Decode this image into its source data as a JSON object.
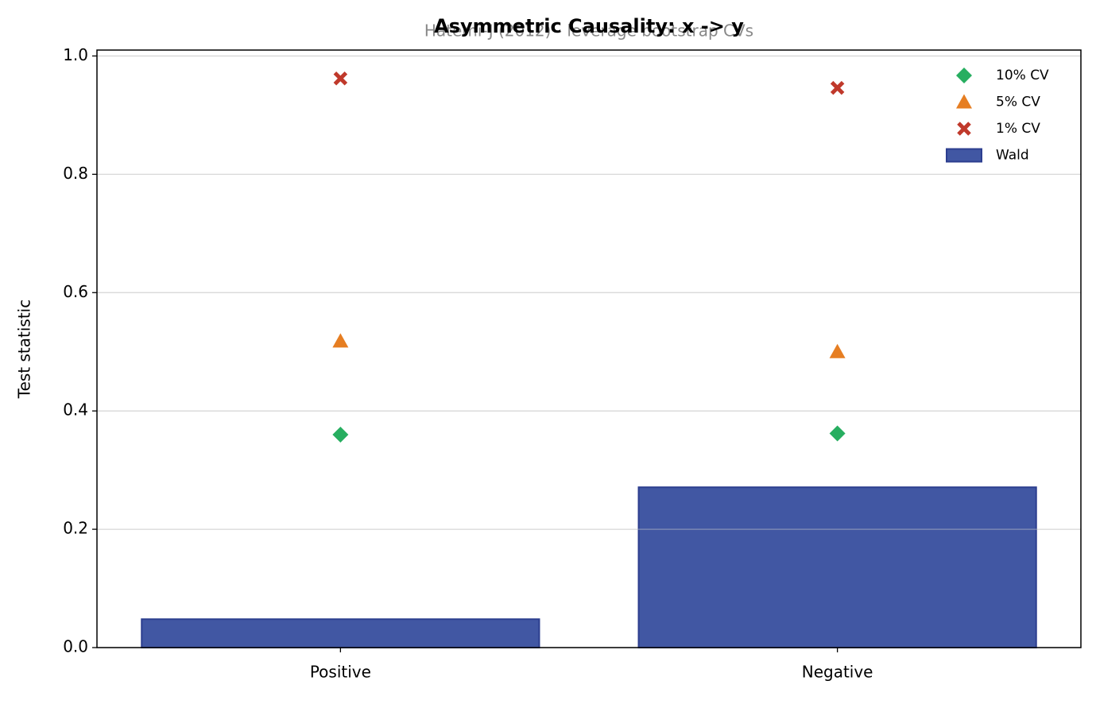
{
  "chart_data": {
    "type": "bar",
    "title": "Asymmetric Causality: x -> y",
    "subtitle": "Hatemi-J (2012) - leverage bootstrap CVs",
    "y_label": "Test statistic",
    "categories": [
      "Positive",
      "Negative"
    ],
    "series": [
      {
        "name": "Wald",
        "kind": "bar",
        "color": "#4157a3",
        "values": [
          0.048,
          0.271
        ]
      },
      {
        "name": "10% CV",
        "kind": "scatter",
        "marker": "diamond",
        "color": "#27ae60",
        "values": [
          0.36,
          0.362
        ]
      },
      {
        "name": "5% CV",
        "kind": "scatter",
        "marker": "triangle",
        "color": "#e67e22",
        "values": [
          0.518,
          0.5
        ]
      },
      {
        "name": "1% CV",
        "kind": "scatter",
        "marker": "x",
        "color": "#c0392b",
        "values": [
          0.962,
          0.946
        ]
      }
    ],
    "legend_order": [
      "10% CV",
      "5% CV",
      "1% CV",
      "Wald"
    ],
    "legend": "upper right",
    "ylim": [
      0,
      1.01
    ],
    "yticks": [
      {
        "value": 0,
        "label": "0.0"
      },
      0.2,
      0.4,
      0.6,
      0.8,
      {
        "value": 1,
        "label": "1.0"
      }
    ],
    "grid": true
  }
}
